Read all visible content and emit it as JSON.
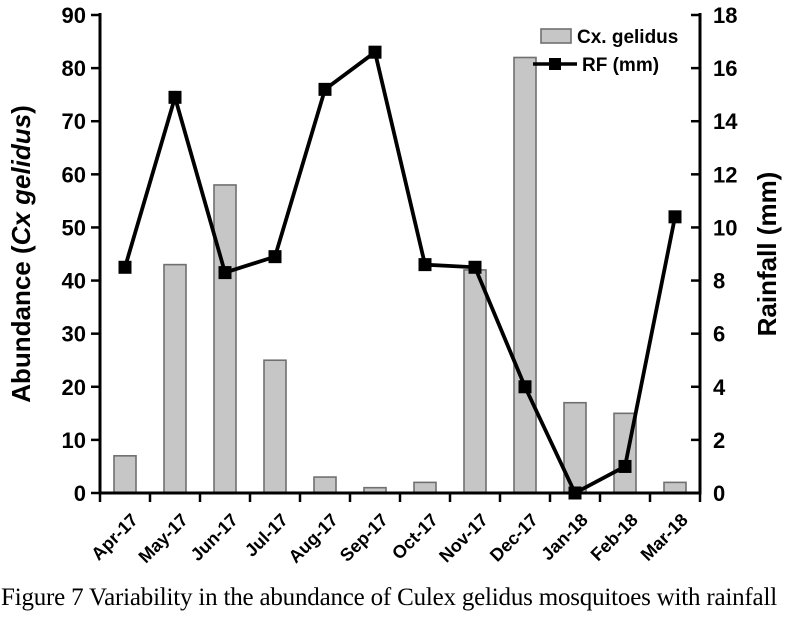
{
  "figure_caption": "Figure 7 Variability in the abundance of Culex gelidus mosquitoes with rainfall",
  "chart_data": {
    "type": "combo-bar-line",
    "categories": [
      "Apr-17",
      "May-17",
      "Jun-17",
      "Jul-17",
      "Aug-17",
      "Sep-17",
      "Oct-17",
      "Nov-17",
      "Dec-17",
      "Jan-18",
      "Feb-18",
      "Mar-18"
    ],
    "series": [
      {
        "name": "Cx. gelidus",
        "type": "bar",
        "axis": "left",
        "values": [
          7,
          43,
          58,
          25,
          3,
          1,
          2,
          42,
          82,
          17,
          15,
          2
        ]
      },
      {
        "name": "RF (mm)",
        "type": "line",
        "axis": "right",
        "values": [
          8.5,
          14.9,
          8.3,
          8.9,
          15.2,
          16.6,
          8.6,
          8.5,
          4.0,
          0.0,
          1.0,
          10.4
        ]
      }
    ],
    "left_axis": {
      "title_prefix": "Abundance (",
      "title_italic": "Cx gelidus",
      "title_suffix": ")",
      "min": 0,
      "max": 90,
      "step": 10
    },
    "right_axis": {
      "title": "Rainfall (mm)",
      "min": 0,
      "max": 18,
      "step": 2
    },
    "legend": {
      "position": "top-right",
      "items": [
        {
          "label": "Cx. gelidus",
          "marker": "bar-swatch"
        },
        {
          "label": "RF (mm)",
          "marker": "line-square"
        }
      ]
    },
    "grid": false,
    "colors": {
      "bar_fill": "#c6c6c6",
      "bar_stroke": "#707070",
      "line": "#000000",
      "marker": "#000000",
      "axis": "#000000",
      "text": "#000000"
    }
  }
}
